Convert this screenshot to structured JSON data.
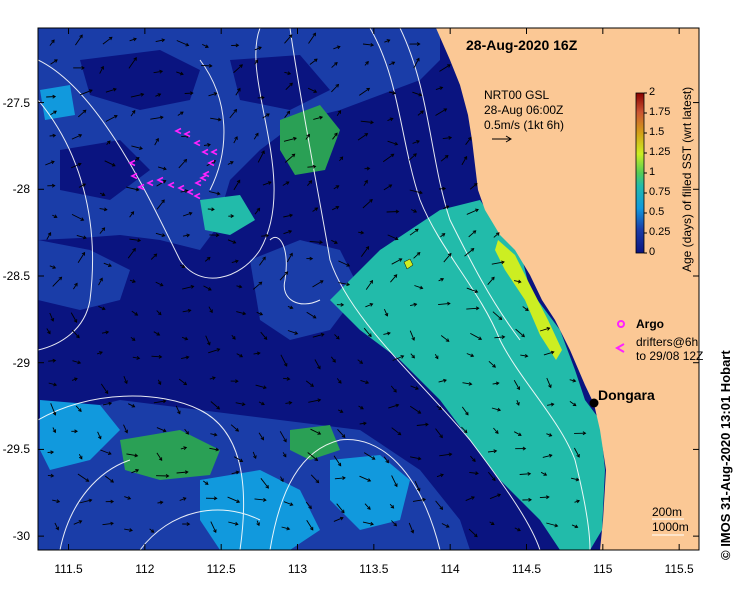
{
  "title": "28-Aug-2020 16Z",
  "current_legend": {
    "line1": "NRT00 GSL",
    "line2": "28-Aug 06:00Z",
    "line3": "0.5m/s (1kt 6h)"
  },
  "colorbar": {
    "label": "Age (days) of filled SST (wrt latest)",
    "ticks": [
      "2",
      "1.75",
      "1.5",
      "1.25",
      "1",
      "0.75",
      "0.5",
      "0.25",
      "0"
    ],
    "colors": [
      "#8b0000",
      "#b22222",
      "#cc5533",
      "#d4a017",
      "#ccee22",
      "#55cc55",
      "#22bbaa",
      "#1199dd",
      "#1a3da8",
      "#0a1480"
    ]
  },
  "axes": {
    "lon_ticks": [
      "111.5",
      "112",
      "112.5",
      "113",
      "113.5",
      "114",
      "114.5",
      "115",
      "115.5"
    ],
    "lat_ticks": [
      "-27.5",
      "-28",
      "-28.5",
      "-29",
      "-29.5",
      "-30"
    ]
  },
  "place": {
    "name": "Dongara"
  },
  "argo_legend": {
    "argo_label": "Argo",
    "drifters_line1": "drifters@6h",
    "drifters_line2": "to 29/08 12Z"
  },
  "depth_legend": {
    "line1": "200m",
    "line2": "1000m"
  },
  "credit": "© IMOS 31-Aug-2020 13:01 Hobart",
  "colors": {
    "land": "#fbc895",
    "deep": "#0a1480",
    "mid": "#1a3da8",
    "light": "#1199dd",
    "teal": "#22bbaa",
    "green": "#2aa055",
    "yellow": "#ccee22",
    "argo": "#ff22ff"
  }
}
